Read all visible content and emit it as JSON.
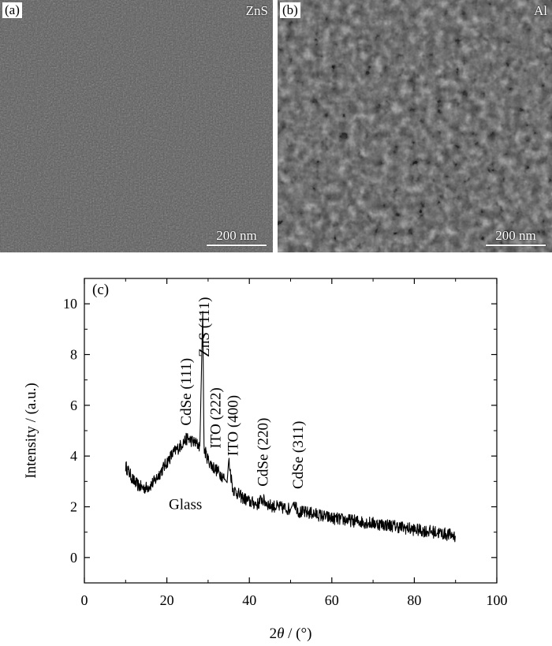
{
  "panels": [
    {
      "tag": "(a)",
      "material": "ZnS",
      "scale": "200 nm",
      "texture": "fine",
      "tone": "#5a5a5a"
    },
    {
      "tag": "(b)",
      "material": "Al",
      "scale": "200 nm",
      "texture": "grainy",
      "tone": "#4a4a4a"
    }
  ],
  "chart_data": {
    "type": "line",
    "panel_tag": "(c)",
    "xlabel_prefix": "2",
    "xlabel_symbol": "θ",
    "xlabel_suffix": " / (°)",
    "ylabel": "Intensity / (a.u.)",
    "xlim": [
      0,
      100
    ],
    "ylim": [
      -1,
      11
    ],
    "xticks": [
      0,
      20,
      40,
      60,
      80,
      100
    ],
    "yticks": [
      0,
      2,
      4,
      6,
      8,
      10
    ],
    "grid": false,
    "series": [
      {
        "color": "#000000",
        "x": [
          10,
          11,
          12,
          13,
          14,
          15,
          16,
          17,
          18,
          19,
          20,
          21,
          22,
          23,
          24,
          25,
          26,
          27,
          28,
          28.7,
          29,
          30,
          31,
          32,
          33,
          34,
          34.6,
          35,
          36,
          38,
          40,
          42,
          43,
          45,
          50,
          50.8,
          52,
          55,
          60,
          65,
          70,
          75,
          80,
          85,
          90
        ],
        "y": [
          3.6,
          3.3,
          3.0,
          2.85,
          2.75,
          2.75,
          2.85,
          3.0,
          3.25,
          3.5,
          3.75,
          4.0,
          4.2,
          4.35,
          4.55,
          4.7,
          4.6,
          4.5,
          4.4,
          9.7,
          4.3,
          3.85,
          3.6,
          3.45,
          3.3,
          3.1,
          2.95,
          3.85,
          2.7,
          2.4,
          2.2,
          2.1,
          2.3,
          2.05,
          1.9,
          2.2,
          1.8,
          1.75,
          1.55,
          1.45,
          1.35,
          1.25,
          1.1,
          1.0,
          0.85
        ]
      }
    ],
    "annotations": [
      {
        "text": "CdSe (111)",
        "x": 25.8,
        "y": 5.2,
        "rotate": true
      },
      {
        "text": "ZnS (111)",
        "x": 30.2,
        "y": 7.9,
        "rotate": true
      },
      {
        "text": "ITO (222)",
        "x": 33.0,
        "y": 4.3,
        "rotate": true
      },
      {
        "text": "ITO (400)",
        "x": 37.2,
        "y": 4.0,
        "rotate": true
      },
      {
        "text": "CdSe (220)",
        "x": 44.5,
        "y": 2.8,
        "rotate": true
      },
      {
        "text": "CdSe (311)",
        "x": 53.0,
        "y": 2.7,
        "rotate": true
      },
      {
        "text": "Glass",
        "x": 24.5,
        "y": 1.9,
        "rotate": false
      }
    ]
  }
}
